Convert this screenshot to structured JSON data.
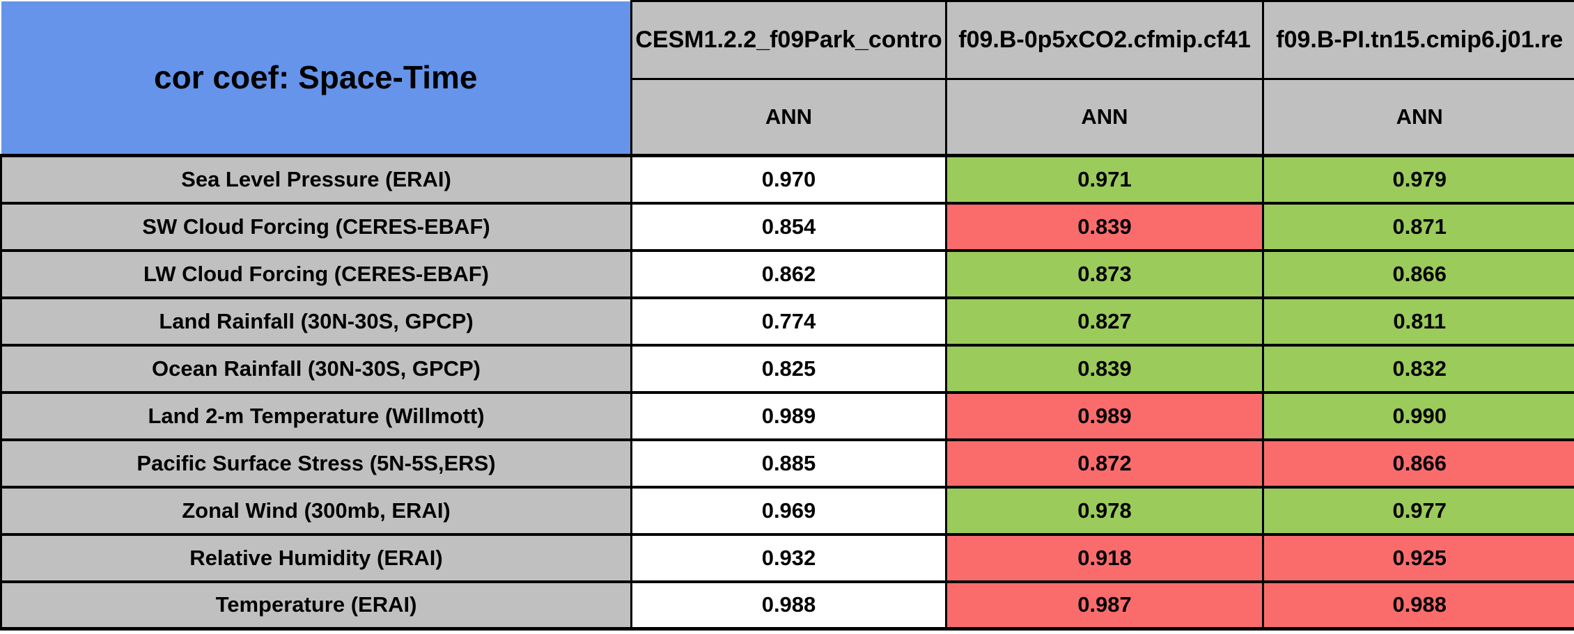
{
  "table": {
    "title": "cor coef: Space-Time",
    "columns": [
      {
        "model": "CESM1.2.2_f09Park_contro",
        "season": "ANN"
      },
      {
        "model": "f09.B-0p5xCO2.cfmip.cf41",
        "season": "ANN"
      },
      {
        "model": "f09.B-PI.tn15.cmip6.j01.re",
        "season": "ANN"
      }
    ],
    "rows": [
      {
        "label": "Sea Level Pressure (ERAI)",
        "cells": [
          {
            "value": "0.970",
            "status": "neutral"
          },
          {
            "value": "0.971",
            "status": "better"
          },
          {
            "value": "0.979",
            "status": "better"
          }
        ]
      },
      {
        "label": "SW Cloud Forcing (CERES-EBAF)",
        "cells": [
          {
            "value": "0.854",
            "status": "neutral"
          },
          {
            "value": "0.839",
            "status": "worse"
          },
          {
            "value": "0.871",
            "status": "better"
          }
        ]
      },
      {
        "label": "LW Cloud Forcing (CERES-EBAF)",
        "cells": [
          {
            "value": "0.862",
            "status": "neutral"
          },
          {
            "value": "0.873",
            "status": "better"
          },
          {
            "value": "0.866",
            "status": "better"
          }
        ]
      },
      {
        "label": "Land Rainfall (30N-30S, GPCP)",
        "cells": [
          {
            "value": "0.774",
            "status": "neutral"
          },
          {
            "value": "0.827",
            "status": "better"
          },
          {
            "value": "0.811",
            "status": "better"
          }
        ]
      },
      {
        "label": "Ocean Rainfall (30N-30S, GPCP)",
        "cells": [
          {
            "value": "0.825",
            "status": "neutral"
          },
          {
            "value": "0.839",
            "status": "better"
          },
          {
            "value": "0.832",
            "status": "better"
          }
        ]
      },
      {
        "label": "Land 2-m Temperature (Willmott)",
        "cells": [
          {
            "value": "0.989",
            "status": "neutral"
          },
          {
            "value": "0.989",
            "status": "worse"
          },
          {
            "value": "0.990",
            "status": "better"
          }
        ]
      },
      {
        "label": "Pacific Surface Stress (5N-5S,ERS)",
        "cells": [
          {
            "value": "0.885",
            "status": "neutral"
          },
          {
            "value": "0.872",
            "status": "worse"
          },
          {
            "value": "0.866",
            "status": "worse"
          }
        ]
      },
      {
        "label": "Zonal Wind (300mb, ERAI)",
        "cells": [
          {
            "value": "0.969",
            "status": "neutral"
          },
          {
            "value": "0.978",
            "status": "better"
          },
          {
            "value": "0.977",
            "status": "better"
          }
        ]
      },
      {
        "label": "Relative Humidity (ERAI)",
        "cells": [
          {
            "value": "0.932",
            "status": "neutral"
          },
          {
            "value": "0.918",
            "status": "worse"
          },
          {
            "value": "0.925",
            "status": "worse"
          }
        ]
      },
      {
        "label": "Temperature (ERAI)",
        "cells": [
          {
            "value": "0.988",
            "status": "neutral"
          },
          {
            "value": "0.987",
            "status": "worse"
          },
          {
            "value": "0.988",
            "status": "worse"
          }
        ]
      }
    ]
  },
  "colors": {
    "title_blue": "#6594EA",
    "header_gray": "#C0C0C0",
    "better_green": "#9BCB5B",
    "worse_red": "#FA6C6C",
    "neutral_white": "#FFFFFF",
    "border_black": "#000000"
  },
  "chart_data": {
    "type": "table",
    "title": "cor coef: Space-Time",
    "column_headers": [
      "CESM1.2.2_f09Park_contro",
      "f09.B-0p5xCO2.cfmip.cf41",
      "f09.B-PI.tn15.cmip6.j01.re"
    ],
    "sub_headers": [
      "ANN",
      "ANN",
      "ANN"
    ],
    "row_headers": [
      "Sea Level Pressure (ERAI)",
      "SW Cloud Forcing (CERES-EBAF)",
      "LW Cloud Forcing (CERES-EBAF)",
      "Land Rainfall (30N-30S, GPCP)",
      "Ocean Rainfall (30N-30S, GPCP)",
      "Land 2-m Temperature (Willmott)",
      "Pacific Surface Stress (5N-5S,ERS)",
      "Zonal Wind (300mb, ERAI)",
      "Relative Humidity (ERAI)",
      "Temperature (ERAI)"
    ],
    "values": [
      [
        0.97,
        0.971,
        0.979
      ],
      [
        0.854,
        0.839,
        0.871
      ],
      [
        0.862,
        0.873,
        0.866
      ],
      [
        0.774,
        0.827,
        0.811
      ],
      [
        0.825,
        0.839,
        0.832
      ],
      [
        0.989,
        0.989,
        0.99
      ],
      [
        0.885,
        0.872,
        0.866
      ],
      [
        0.969,
        0.978,
        0.977
      ],
      [
        0.932,
        0.918,
        0.925
      ],
      [
        0.988,
        0.987,
        0.988
      ]
    ],
    "cell_status": [
      [
        "neutral",
        "better",
        "better"
      ],
      [
        "neutral",
        "worse",
        "better"
      ],
      [
        "neutral",
        "better",
        "better"
      ],
      [
        "neutral",
        "better",
        "better"
      ],
      [
        "neutral",
        "better",
        "better"
      ],
      [
        "neutral",
        "worse",
        "better"
      ],
      [
        "neutral",
        "worse",
        "worse"
      ],
      [
        "neutral",
        "better",
        "better"
      ],
      [
        "neutral",
        "worse",
        "worse"
      ],
      [
        "neutral",
        "worse",
        "worse"
      ]
    ],
    "legend_note_colors": {
      "better": "#9BCB5B",
      "worse": "#FA6C6C",
      "control": "#FFFFFF"
    }
  }
}
